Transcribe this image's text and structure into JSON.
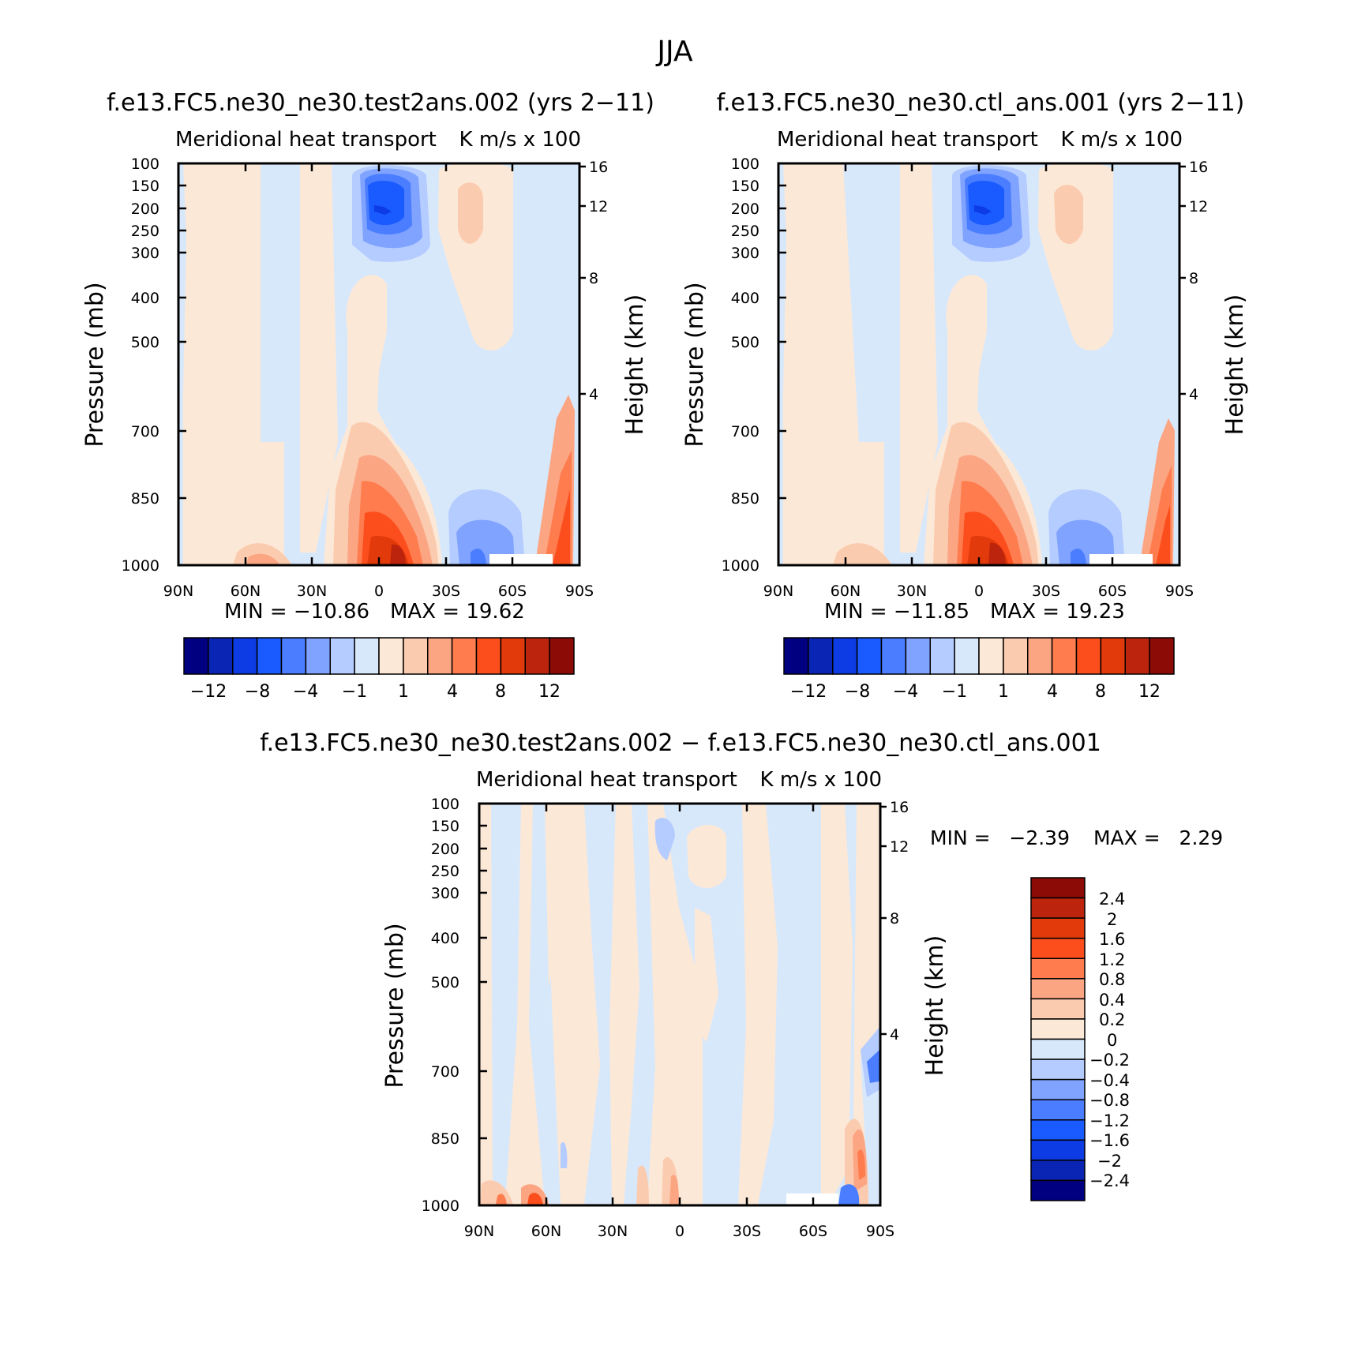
{
  "figure_title": "JJA",
  "colors": {
    "left_scale": [
      "#000080",
      "#0a24b4",
      "#0d3be4",
      "#1a5bff",
      "#4a7dff",
      "#7fa3ff",
      "#b4ccff",
      "#d8e8fb",
      "#fce8d6",
      "#fbcbb0",
      "#fba583",
      "#fe7c4e",
      "#fc4e1d",
      "#e23a0a",
      "#bd240d",
      "#8c0b06"
    ],
    "diff_scale": [
      "#000080",
      "#0a24b4",
      "#0d3be4",
      "#1a5bff",
      "#4a7dff",
      "#7fa3ff",
      "#b4ccff",
      "#d8e8fb",
      "#fce8d6",
      "#fbcbb0",
      "#fba583",
      "#fe7c4e",
      "#fc4e1d",
      "#e23a0a",
      "#bd240d",
      "#8c0b06"
    ]
  },
  "chart_data": [
    {
      "type": "heatmap",
      "panel": "test",
      "title": "f.e13.FC5.ne30_ne30.test2ans.002 (yrs 2-11)",
      "subtitle_left": "Meridional heat transport",
      "subtitle_right": "K m/s x 100",
      "ylabel": "Pressure (mb)",
      "ylabel_right": "Height (km)",
      "xticks": [
        "90N",
        "60N",
        "30N",
        "0",
        "30S",
        "60S",
        "90S"
      ],
      "xlim": [
        90,
        -90
      ],
      "yticks": [
        "100",
        "150",
        "200",
        "250",
        "300",
        "400",
        "500",
        "700",
        "850",
        "1000"
      ],
      "ylim": [
        100,
        1000
      ],
      "height_ticks": [
        "16",
        "12",
        "8",
        "4"
      ],
      "min_label": "MIN = -10.86",
      "max_label": "MAX = 19.62",
      "min": -10.86,
      "max": 19.62,
      "levels": [
        -12,
        -8,
        -4,
        -1,
        1,
        4,
        8,
        12
      ],
      "colorbar_labels": [
        "-12",
        "-8",
        "-4",
        "-1",
        "1",
        "4",
        "8",
        "12"
      ],
      "features": [
        {
          "lat": 4,
          "p": 200,
          "value": -10.86
        },
        {
          "lat": -28,
          "p": 220,
          "value": 2
        },
        {
          "lat": -9,
          "p": 975,
          "value": 19.62
        },
        {
          "lat": -45,
          "p": 975,
          "value": -6
        },
        {
          "lat": -85,
          "p": 900,
          "value": 9
        }
      ]
    },
    {
      "type": "heatmap",
      "panel": "ctl",
      "title": "f.e13.FC5.ne30_ne30.ctl_ans.001 (yrs 2-11)",
      "subtitle_left": "Meridional heat transport",
      "subtitle_right": "K m/s x 100",
      "ylabel": "Pressure (mb)",
      "ylabel_right": "Height (km)",
      "xticks": [
        "90N",
        "60N",
        "30N",
        "0",
        "30S",
        "60S",
        "90S"
      ],
      "xlim": [
        90,
        -90
      ],
      "yticks": [
        "100",
        "150",
        "200",
        "250",
        "300",
        "400",
        "500",
        "700",
        "850",
        "1000"
      ],
      "ylim": [
        100,
        1000
      ],
      "height_ticks": [
        "16",
        "12",
        "8",
        "4"
      ],
      "min_label": "MIN = -11.85",
      "max_label": "MAX = 19.23",
      "min": -11.85,
      "max": 19.23,
      "levels": [
        -12,
        -8,
        -4,
        -1,
        1,
        4,
        8,
        12
      ],
      "colorbar_labels": [
        "-12",
        "-8",
        "-4",
        "-1",
        "1",
        "4",
        "8",
        "12"
      ],
      "features": [
        {
          "lat": 4,
          "p": 200,
          "value": -11.85
        },
        {
          "lat": -28,
          "p": 220,
          "value": 2
        },
        {
          "lat": -8,
          "p": 975,
          "value": 19.23
        },
        {
          "lat": -45,
          "p": 975,
          "value": -6
        },
        {
          "lat": -85,
          "p": 900,
          "value": 8
        }
      ]
    },
    {
      "type": "heatmap",
      "panel": "diff",
      "title": "f.e13.FC5.ne30_ne30.test2ans.002 - f.e13.FC5.ne30_ne30.ctl_ans.001",
      "subtitle_left": "Meridional heat transport",
      "subtitle_right": "K m/s x 100",
      "ylabel": "Pressure (mb)",
      "ylabel_right": "Height (km)",
      "xticks": [
        "90N",
        "60N",
        "30N",
        "0",
        "30S",
        "60S",
        "90S"
      ],
      "xlim": [
        90,
        -90
      ],
      "yticks": [
        "100",
        "150",
        "200",
        "250",
        "300",
        "400",
        "500",
        "700",
        "850",
        "1000"
      ],
      "ylim": [
        100,
        1000
      ],
      "height_ticks": [
        "16",
        "12",
        "8",
        "4"
      ],
      "min_label": "MIN =   -2.39",
      "max_label": "MAX =   2.29",
      "min": -2.39,
      "max": 2.29,
      "levels": [
        -2.4,
        -2,
        -1.6,
        -1.2,
        -0.8,
        -0.4,
        -0.2,
        0,
        0.2,
        0.4,
        0.8,
        1.2,
        1.6,
        2,
        2.4
      ],
      "colorbar_labels": [
        "2.4",
        "2",
        "1.6",
        "1.2",
        "0.8",
        "0.4",
        "0.2",
        "0",
        "-0.2",
        "-0.4",
        "-0.8",
        "-1.2",
        "-1.6",
        "-2",
        "-2.4"
      ],
      "features": [
        {
          "lat": 68,
          "p": 985,
          "value": 1.2
        },
        {
          "lat": -85,
          "p": 900,
          "value": 1.0
        },
        {
          "lat": -88,
          "p": 750,
          "value": -1.0
        },
        {
          "lat": -80,
          "p": 990,
          "value": -2.39
        }
      ]
    }
  ]
}
